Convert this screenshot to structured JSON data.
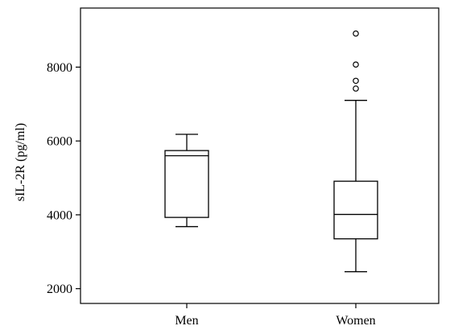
{
  "chart_data": {
    "type": "boxplot",
    "title": "",
    "xlabel": "",
    "ylabel": "sIL-2R (pg/ml)",
    "ylim": [
      1600,
      9600
    ],
    "y_ticks": [
      2000,
      4000,
      6000,
      8000
    ],
    "y_tick_labels": [
      "2000",
      "4000",
      "6000",
      "8000"
    ],
    "grid": false,
    "legend": "none",
    "categories": [
      "Men",
      "Women"
    ],
    "boxes": [
      {
        "category": "Men",
        "whisker_low": 3680,
        "q1": 3930,
        "median": 5600,
        "q3": 5740,
        "whisker_high": 6180,
        "outliers": []
      },
      {
        "category": "Women",
        "whisker_low": 2460,
        "q1": 3350,
        "median": 4010,
        "q3": 4910,
        "whisker_high": 7100,
        "outliers": [
          7420,
          7630,
          8070,
          8910
        ]
      }
    ],
    "colors": {
      "line": "#000000",
      "box_fill": "#ffffff",
      "background": "#ffffff"
    }
  }
}
